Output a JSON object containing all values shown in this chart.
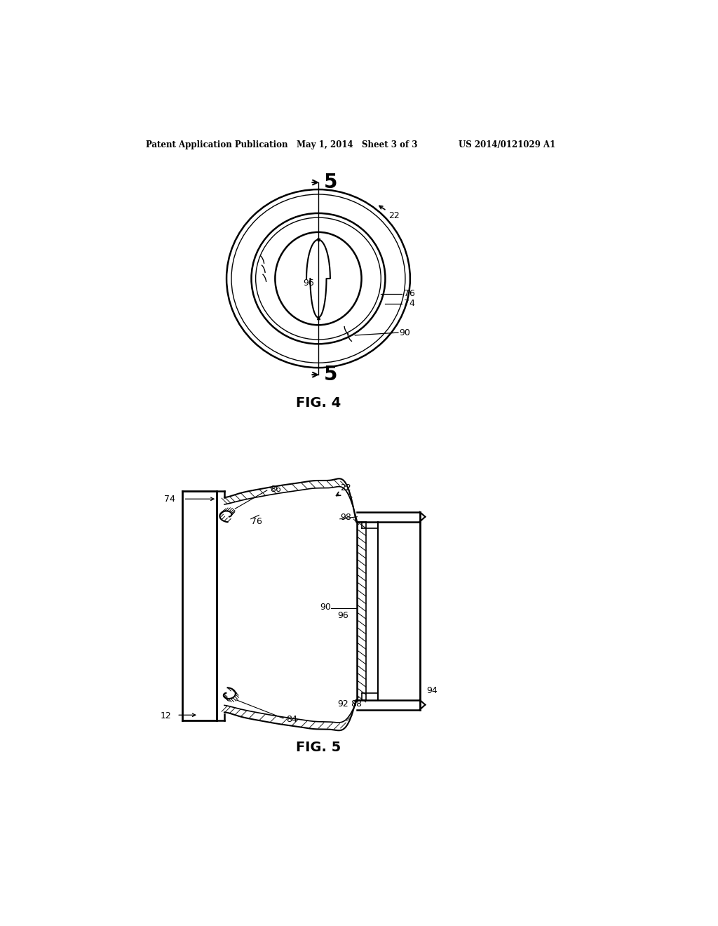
{
  "bg_color": "#ffffff",
  "header_left": "Patent Application Publication",
  "header_center": "May 1, 2014   Sheet 3 of 3",
  "header_right": "US 2014/0121029 A1",
  "fig4_label": "FIG. 4",
  "fig5_label": "FIG. 5",
  "line_color": "#000000"
}
